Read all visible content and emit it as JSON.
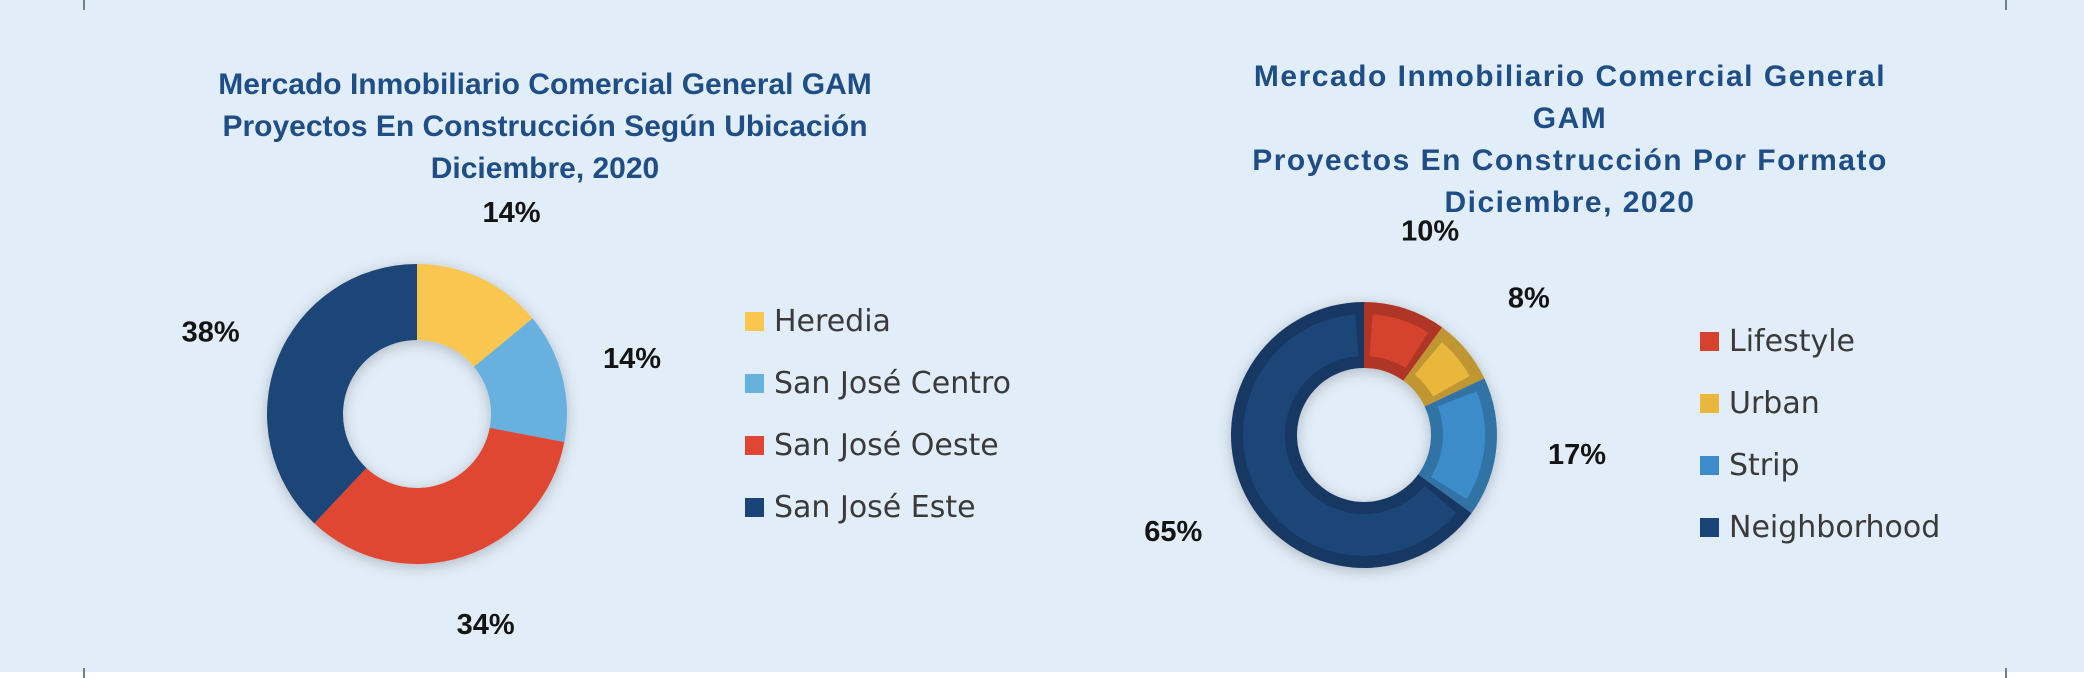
{
  "chart_data": [
    {
      "type": "pie",
      "title_lines": [
        "Mercado Inmobiliario Comercial General GAM",
        "Proyectos En Construcción Según Ubicación",
        "Diciembre, 2020"
      ],
      "categories": [
        "Heredia",
        "San José Centro",
        "San José Oeste",
        "San José Este"
      ],
      "values": [
        14,
        14,
        34,
        38
      ],
      "labels": [
        "14%",
        "14%",
        "34%",
        "38%"
      ],
      "colors": [
        "#f9c74f",
        "#67b1de",
        "#e04633",
        "#1a4478"
      ],
      "legend": "right"
    },
    {
      "type": "pie",
      "title_lines": [
        "Mercado Inmobiliario Comercial General",
        "GAM",
        "Proyectos En Construcción Por Formato",
        "Diciembre, 2020"
      ],
      "categories": [
        "Lifestyle",
        "Urban",
        "Strip",
        "Neighborhood"
      ],
      "values": [
        10,
        8,
        17,
        65
      ],
      "labels": [
        "10%",
        "8%",
        "17%",
        "65%"
      ],
      "colors": [
        "#d5422e",
        "#e9b73b",
        "#3d8cca",
        "#1a4478"
      ],
      "legend": "right"
    }
  ]
}
